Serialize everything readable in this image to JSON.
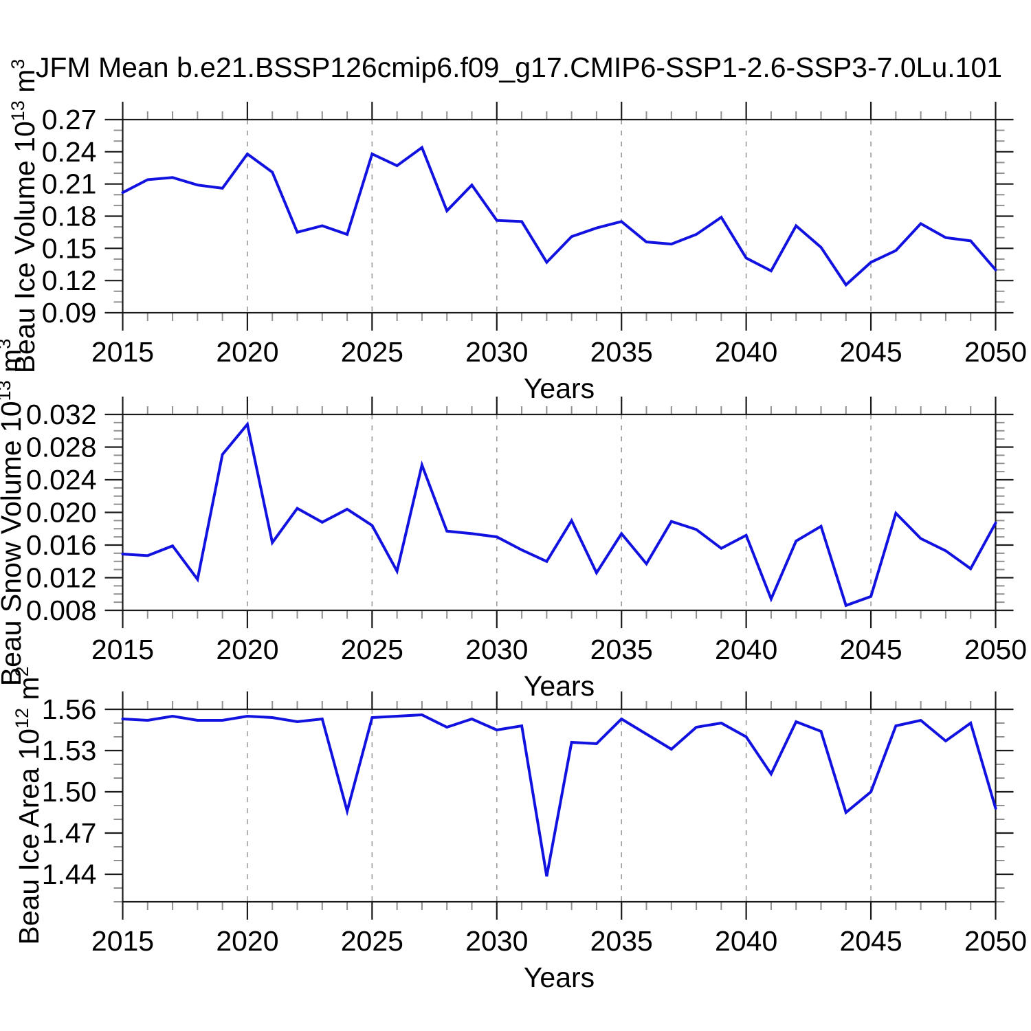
{
  "title": "JFM Mean b.e21.BSSP126cmip6.f09_g17.CMIP6-SSP1-2.6-SSP3-7.0Lu.101",
  "colors": {
    "line": "#1212E0",
    "grid": "#9b9b9b",
    "axis": "#1a1a1a",
    "minor_tick": "#8f8f8f",
    "text": "#000000"
  },
  "chart_data": [
    {
      "type": "line",
      "panel": "beau-ice-volume",
      "ylabel_parts": [
        [
          "t",
          "Beau Ice Volume 10"
        ],
        [
          "s",
          "13"
        ],
        [
          "t",
          " m"
        ],
        [
          "s",
          "3"
        ]
      ],
      "xlabel": "Years",
      "x": [
        2015,
        2016,
        2017,
        2018,
        2019,
        2020,
        2021,
        2022,
        2023,
        2024,
        2025,
        2026,
        2027,
        2028,
        2029,
        2030,
        2031,
        2032,
        2033,
        2034,
        2035,
        2036,
        2037,
        2038,
        2039,
        2040,
        2041,
        2042,
        2043,
        2044,
        2045,
        2046,
        2047,
        2048,
        2049,
        2050
      ],
      "values": [
        0.202,
        0.214,
        0.216,
        0.209,
        0.206,
        0.238,
        0.221,
        0.165,
        0.171,
        0.163,
        0.238,
        0.227,
        0.244,
        0.185,
        0.209,
        0.176,
        0.175,
        0.137,
        0.161,
        0.169,
        0.175,
        0.156,
        0.154,
        0.163,
        0.179,
        0.141,
        0.129,
        0.171,
        0.151,
        0.116,
        0.137,
        0.148,
        0.173,
        0.16,
        0.157,
        0.13
      ],
      "frame_ylim": [
        0.09,
        0.27
      ],
      "ytick_values": [
        0.09,
        0.12,
        0.15,
        0.18,
        0.21,
        0.24,
        0.27
      ],
      "ytick_labels": [
        "0.09",
        "0.12",
        "0.15",
        "0.18",
        "0.21",
        "0.24",
        "0.27"
      ],
      "y_minor_step": 0.01,
      "xlim": [
        2015,
        2050
      ],
      "xtick_values": [
        2015,
        2020,
        2025,
        2030,
        2035,
        2040,
        2045,
        2050
      ],
      "xtick_labels": [
        "2015",
        "2020",
        "2025",
        "2030",
        "2035",
        "2040",
        "2045",
        "2050"
      ],
      "x_minor_step": 1,
      "grid_years": [
        2020,
        2025,
        2030,
        2035,
        2040,
        2045
      ],
      "grid_style": "dashed-vertical"
    },
    {
      "type": "line",
      "panel": "beau-snow-volume",
      "ylabel_parts": [
        [
          "t",
          "Beau Snow Volume 10"
        ],
        [
          "s",
          "13"
        ],
        [
          "t",
          " m"
        ],
        [
          "s",
          "3"
        ]
      ],
      "xlabel": "Years",
      "x": [
        2015,
        2016,
        2017,
        2018,
        2019,
        2020,
        2021,
        2022,
        2023,
        2024,
        2025,
        2026,
        2027,
        2028,
        2029,
        2030,
        2031,
        2032,
        2033,
        2034,
        2035,
        2036,
        2037,
        2038,
        2039,
        2040,
        2041,
        2042,
        2043,
        2044,
        2045,
        2046,
        2047,
        2048,
        2049,
        2050
      ],
      "values": [
        0.0149,
        0.0147,
        0.0159,
        0.0118,
        0.0271,
        0.0308,
        0.0163,
        0.0205,
        0.0188,
        0.0204,
        0.0184,
        0.0128,
        0.0258,
        0.0177,
        0.0174,
        0.017,
        0.0154,
        0.014,
        0.019,
        0.0126,
        0.0174,
        0.0137,
        0.0189,
        0.0179,
        0.0156,
        0.0172,
        0.0094,
        0.0165,
        0.0183,
        0.0086,
        0.0097,
        0.0199,
        0.0168,
        0.0153,
        0.0131,
        0.0187
      ],
      "frame_ylim": [
        0.008,
        0.032
      ],
      "ytick_values": [
        0.008,
        0.012,
        0.016,
        0.02,
        0.024,
        0.028,
        0.032
      ],
      "ytick_labels": [
        "0.008",
        "0.012",
        "0.016",
        "0.020",
        "0.024",
        "0.028",
        "0.032"
      ],
      "y_minor_step": 0.001,
      "xlim": [
        2015,
        2050
      ],
      "xtick_values": [
        2015,
        2020,
        2025,
        2030,
        2035,
        2040,
        2045,
        2050
      ],
      "xtick_labels": [
        "2015",
        "2020",
        "2025",
        "2030",
        "2035",
        "2040",
        "2045",
        "2050"
      ],
      "x_minor_step": 1,
      "grid_years": [
        2020,
        2025,
        2030,
        2035,
        2040,
        2045
      ],
      "grid_style": "dashed-vertical"
    },
    {
      "type": "line",
      "panel": "beau-ice-area",
      "ylabel_parts": [
        [
          "t",
          "Beau Ice Area 10"
        ],
        [
          "s",
          "12"
        ],
        [
          "t",
          " m"
        ],
        [
          "s",
          "2"
        ]
      ],
      "xlabel": "Years",
      "x": [
        2015,
        2016,
        2017,
        2018,
        2019,
        2020,
        2021,
        2022,
        2023,
        2024,
        2025,
        2026,
        2027,
        2028,
        2029,
        2030,
        2031,
        2032,
        2033,
        2034,
        2035,
        2036,
        2037,
        2038,
        2039,
        2040,
        2041,
        2042,
        2043,
        2044,
        2045,
        2046,
        2047,
        2048,
        2049,
        2050
      ],
      "values": [
        1.553,
        1.552,
        1.555,
        1.552,
        1.552,
        1.555,
        1.554,
        1.551,
        1.553,
        1.486,
        1.554,
        1.555,
        1.556,
        1.547,
        1.553,
        1.545,
        1.548,
        1.4385,
        1.536,
        1.535,
        1.553,
        1.542,
        1.531,
        1.547,
        1.55,
        1.54,
        1.513,
        1.551,
        1.544,
        1.485,
        1.5,
        1.548,
        1.552,
        1.537,
        1.55,
        1.488
      ],
      "frame_ylim": [
        1.42,
        1.56
      ],
      "ytick_values": [
        1.44,
        1.47,
        1.5,
        1.53,
        1.56
      ],
      "ytick_labels": [
        "1.44",
        "1.47",
        "1.50",
        "1.53",
        "1.56"
      ],
      "y_minor_step": 0.01,
      "xlim": [
        2015,
        2050
      ],
      "xtick_values": [
        2015,
        2020,
        2025,
        2030,
        2035,
        2040,
        2045,
        2050
      ],
      "xtick_labels": [
        "2015",
        "2020",
        "2025",
        "2030",
        "2035",
        "2040",
        "2045",
        "2050"
      ],
      "x_minor_step": 1,
      "grid_years": [
        2020,
        2025,
        2030,
        2035,
        2040,
        2045
      ],
      "grid_style": "dashed-vertical"
    }
  ]
}
